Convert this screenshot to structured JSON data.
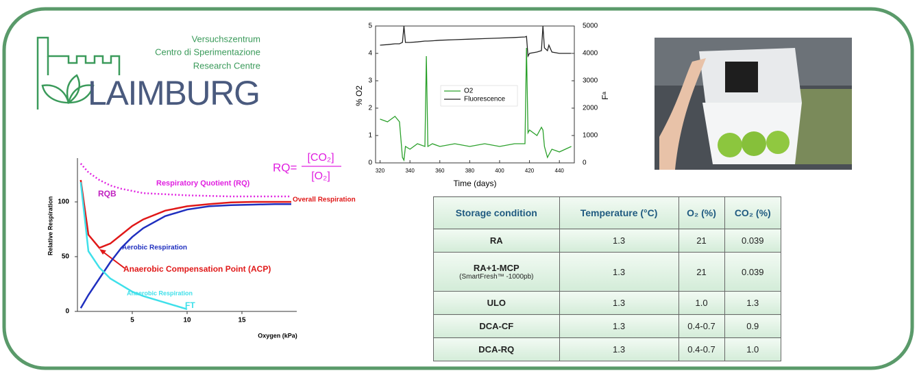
{
  "logo": {
    "lines": [
      "Versuchszentrum",
      "Centro di Sperimentazione",
      "Research Centre"
    ],
    "name": "LAIMBURG"
  },
  "chart_data": [
    {
      "type": "line",
      "x_label": "Oxygen (kPa)",
      "y_label": "Relative Respiration",
      "x": [
        0.3,
        1,
        2,
        3,
        4,
        5,
        6,
        8,
        10,
        12,
        14,
        16,
        18,
        19.5
      ],
      "xlim": [
        0,
        20
      ],
      "ylim": [
        0,
        140
      ],
      "xticks": [
        5,
        10,
        15
      ],
      "yticks": [
        0,
        50,
        100
      ],
      "series": [
        {
          "name": "Overall Respiration",
          "color": "#e01818",
          "values": [
            120,
            70,
            58,
            62,
            70,
            78,
            84,
            92,
            96,
            98,
            99.5,
            100,
            100,
            100
          ]
        },
        {
          "name": "Aerobic Respiration",
          "color": "#1f2fbf",
          "values": [
            3,
            15,
            30,
            45,
            58,
            68,
            76,
            87,
            93,
            96,
            97,
            97.5,
            98,
            98
          ]
        },
        {
          "name": "Anaerobic Respiration",
          "color": "#3fe0ea",
          "values": [
            118,
            55,
            40,
            30,
            24,
            18,
            14,
            8,
            2,
            null,
            null,
            null,
            null,
            null
          ]
        },
        {
          "name": "Respiratory Quotient (RQ)",
          "color": "#e020e0",
          "line_style": "dotted",
          "values": [
            135,
            127,
            120,
            115,
            112,
            110,
            108,
            107,
            106,
            105.5,
            105,
            105,
            105,
            105
          ]
        }
      ],
      "annotations": [
        "RQB",
        "Anaerobic Compensation Point (ACP)",
        "FT"
      ],
      "formula": {
        "lhs": "RQ=",
        "numerator": "[CO₂]",
        "denominator": "[O₂]"
      }
    },
    {
      "type": "line",
      "x_label": "Time (days)",
      "y_label": "% O2",
      "y2_label": "Fᵃ",
      "x": [
        320,
        325,
        330,
        333,
        335,
        336,
        337,
        340,
        345,
        350,
        351,
        352,
        355,
        360,
        370,
        380,
        390,
        400,
        410,
        417,
        418,
        419,
        420,
        425,
        428,
        429,
        430,
        432,
        433,
        435,
        440,
        448
      ],
      "xlim": [
        317,
        450
      ],
      "ylim": [
        0,
        5
      ],
      "y2lim": [
        0,
        5000
      ],
      "xticks": [
        320,
        340,
        360,
        380,
        400,
        420,
        440
      ],
      "yticks": [
        0,
        1,
        2,
        3,
        4,
        5
      ],
      "y2ticks": [
        0,
        1000,
        2000,
        3000,
        4000,
        5000
      ],
      "series": [
        {
          "name": "O2",
          "color": "#2aa02a",
          "values": [
            1.6,
            1.5,
            1.7,
            1.5,
            0.2,
            0.1,
            0.6,
            0.5,
            0.7,
            0.6,
            3.9,
            0.6,
            0.7,
            0.6,
            0.7,
            0.6,
            0.7,
            0.6,
            0.7,
            0.7,
            4.2,
            1.1,
            1.2,
            1.0,
            1.3,
            1.2,
            0.6,
            0.2,
            0.3,
            0.5,
            0.4,
            0.6
          ]
        },
        {
          "name": "Fluorescence",
          "color": "#222222",
          "axis": "y2",
          "values": [
            4300,
            4320,
            4350,
            4350,
            4400,
            5000,
            4400,
            4400,
            4420,
            4450,
            4450,
            4450,
            4460,
            4480,
            4500,
            4520,
            4540,
            4560,
            4580,
            4600,
            4620,
            3900,
            4000,
            4050,
            4100,
            5000,
            4200,
            4100,
            4300,
            4050,
            4000,
            4000
          ]
        }
      ]
    }
  ],
  "table": {
    "header": [
      "Storage condition",
      "Temperature (°C)",
      "O₂ (%)",
      "CO₂ (%)"
    ],
    "rows": [
      {
        "condition": "RA",
        "temperature": "1.3",
        "o2": "21",
        "co2": "0.039"
      },
      {
        "condition": "RA+1-MCP",
        "note": "(SmartFresh™ -1000pb)",
        "temperature": "1.3",
        "o2": "21",
        "co2": "0.039"
      },
      {
        "condition": "ULO",
        "temperature": "1.3",
        "o2": "1.0",
        "co2": "1.3"
      },
      {
        "condition": "DCA-CF",
        "temperature": "1.3",
        "o2": "0.4-0.7",
        "co2": "0.9"
      },
      {
        "condition": "DCA-RQ",
        "temperature": "1.3",
        "o2": "0.4-0.7",
        "co2": "1.0"
      }
    ]
  }
}
